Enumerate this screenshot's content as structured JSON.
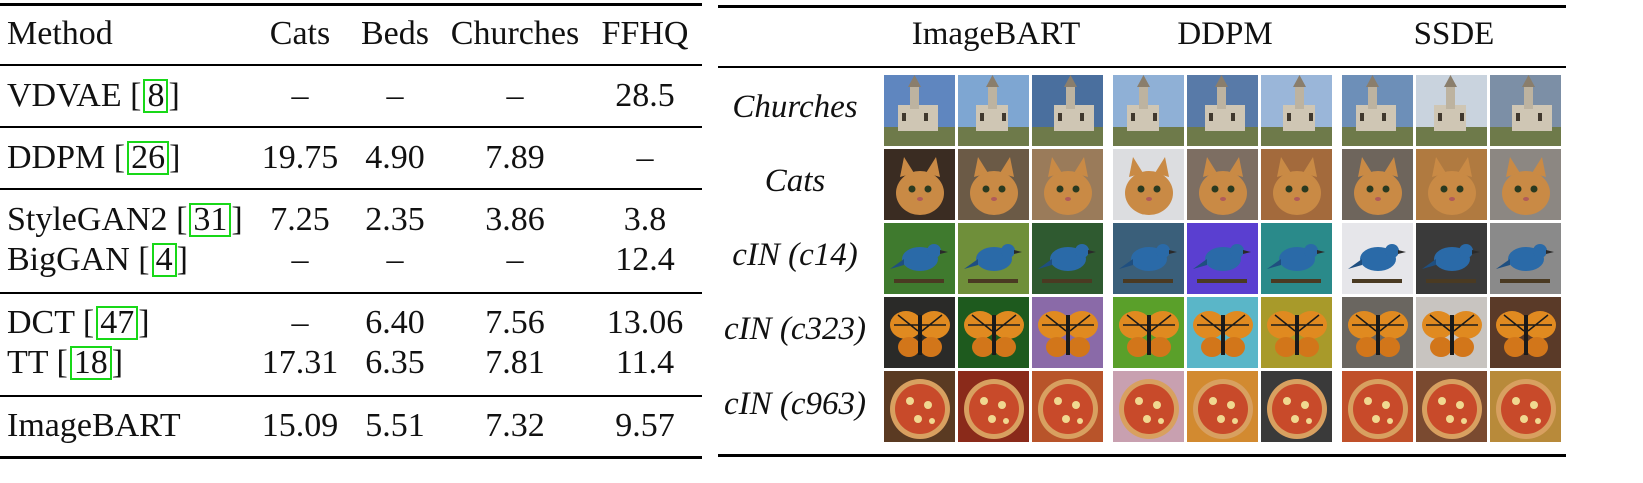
{
  "table": {
    "headers": [
      "Method",
      "Cats",
      "Beds",
      "Churches",
      "FFHQ"
    ],
    "groups": [
      [
        {
          "method": "VDVAE",
          "cite": "8",
          "values": [
            "–",
            "–",
            "–",
            "28.5"
          ]
        }
      ],
      [
        {
          "method": "DDPM",
          "cite": "26",
          "values": [
            "19.75",
            "4.90",
            "7.89",
            "–"
          ]
        }
      ],
      [
        {
          "method": "StyleGAN2",
          "cite": "31",
          "values": [
            "7.25",
            "2.35",
            "3.86",
            "3.8"
          ]
        },
        {
          "method": "BigGAN",
          "cite": "4",
          "values": [
            "–",
            "–",
            "–",
            "12.4"
          ]
        }
      ],
      [
        {
          "method": "DCT",
          "cite": "47",
          "values": [
            "–",
            "6.40",
            "7.56",
            "13.06"
          ]
        },
        {
          "method": "TT",
          "cite": "18",
          "values": [
            "17.31",
            "6.35",
            "7.81",
            "11.4"
          ]
        }
      ],
      [
        {
          "method": "ImageBART",
          "cite": "",
          "values": [
            "15.09",
            "5.51",
            "7.32",
            "9.57"
          ]
        }
      ]
    ]
  },
  "samples": {
    "columns": [
      "ImageBART",
      "DDPM",
      "SSDE"
    ],
    "rows": [
      "Churches",
      "Cats",
      "cIN (c14)",
      "cIN (c323)",
      "cIN (c963)"
    ]
  },
  "colors": {
    "citation_box": "#18d818",
    "sky": "#6b93c2",
    "cat": "#c98a45",
    "bird": "#2a6aa8",
    "butterfly": "#e08a20",
    "pizza": "#c84a2a"
  }
}
